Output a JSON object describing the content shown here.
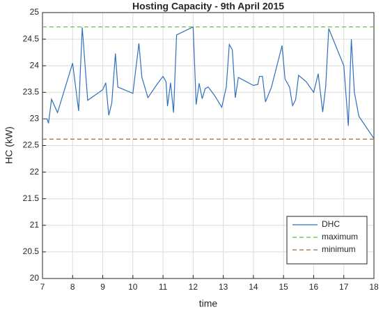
{
  "chart_data": {
    "type": "line",
    "title": "Hosting Capacity - 9th April 2015",
    "xlabel": "time",
    "ylabel": "HC (kW)",
    "xlim": [
      7,
      18
    ],
    "xticks": [
      7,
      8,
      9,
      10,
      11,
      12,
      13,
      14,
      15,
      16,
      17,
      18
    ],
    "ylim": [
      20,
      25
    ],
    "yticks": [
      20,
      20.5,
      21,
      21.5,
      22,
      22.5,
      23,
      23.5,
      24,
      24.5,
      25
    ],
    "grid": true,
    "legend": "lower right",
    "series": [
      {
        "name": "DHC",
        "color": "#2f6fbd",
        "linestyle": "solid",
        "x": [
          7.0,
          7.15,
          7.2,
          7.3,
          7.5,
          8.0,
          8.2,
          8.32,
          8.5,
          9.0,
          9.1,
          9.2,
          9.3,
          9.42,
          9.5,
          10.0,
          10.2,
          10.3,
          10.5,
          10.8,
          11.0,
          11.1,
          11.15,
          11.25,
          11.35,
          11.45,
          12.0,
          12.1,
          12.2,
          12.3,
          12.4,
          12.5,
          12.7,
          12.95,
          13.1,
          13.2,
          13.3,
          13.4,
          13.5,
          14.0,
          14.15,
          14.2,
          14.3,
          14.4,
          14.6,
          14.95,
          15.05,
          15.2,
          15.3,
          15.4,
          15.5,
          15.75,
          16.0,
          16.15,
          16.3,
          16.4,
          16.5,
          17.0,
          17.15,
          17.25,
          17.35,
          17.5,
          18.0
        ],
        "values": [
          23.0,
          23.0,
          22.92,
          23.37,
          23.12,
          24.05,
          23.15,
          24.72,
          23.35,
          23.55,
          23.68,
          23.07,
          23.3,
          24.23,
          23.6,
          23.48,
          24.42,
          23.78,
          23.4,
          23.65,
          23.8,
          23.7,
          23.24,
          23.68,
          23.12,
          24.58,
          24.73,
          23.27,
          23.67,
          23.38,
          23.57,
          23.6,
          23.45,
          23.22,
          23.6,
          24.4,
          24.3,
          23.4,
          23.78,
          23.63,
          23.65,
          23.8,
          23.8,
          23.32,
          23.6,
          24.38,
          23.75,
          23.6,
          23.25,
          23.36,
          23.82,
          23.7,
          23.5,
          23.85,
          23.13,
          23.62,
          24.7,
          24.0,
          22.87,
          24.5,
          23.5,
          23.05,
          22.63
        ]
      },
      {
        "name": "maximum",
        "color": "#5cc02a",
        "linestyle": "dashed",
        "x": [
          7,
          18
        ],
        "values": [
          24.73,
          24.73
        ]
      },
      {
        "name": "minimum",
        "color": "#a26a3e",
        "linestyle": "dashed",
        "x": [
          7,
          18
        ],
        "values": [
          22.62,
          22.62
        ]
      }
    ]
  }
}
